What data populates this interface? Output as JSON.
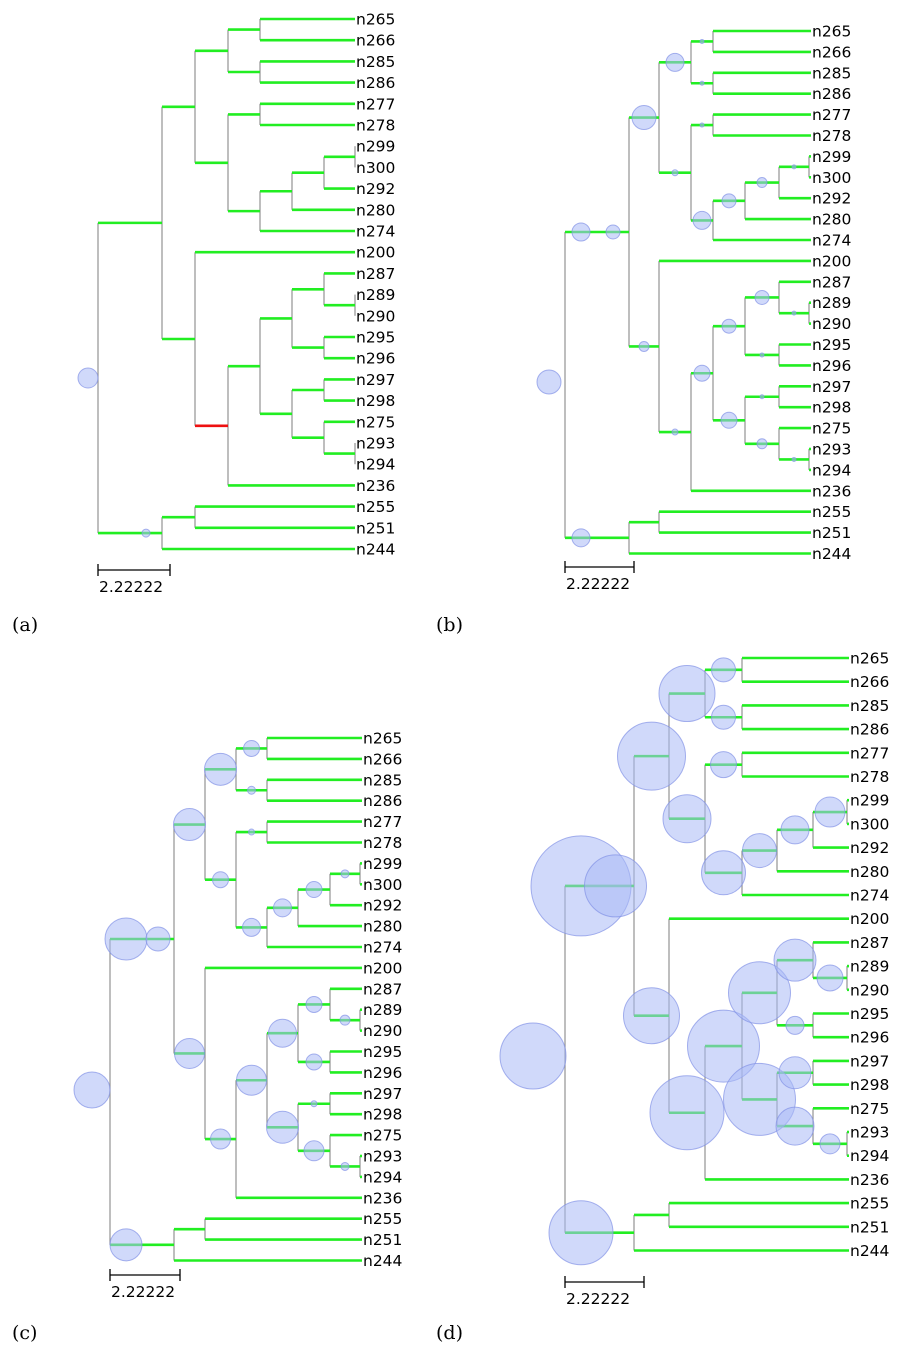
{
  "figure": {
    "scale_label": "2.22222",
    "leaves": [
      "n265",
      "n266",
      "n285",
      "n286",
      "n277",
      "n278",
      "n299",
      "n300",
      "n292",
      "n280",
      "n274",
      "n200",
      "n287",
      "n289",
      "n290",
      "n295",
      "n296",
      "n297",
      "n298",
      "n275",
      "n293",
      "n294",
      "n236",
      "n255",
      "n251",
      "n244"
    ],
    "colors": {
      "edge": "#22ee22",
      "highlight_edge": "#ee1111",
      "stem": "#888888",
      "bubble": "#aab9f5"
    },
    "panels": [
      {
        "caption": "(a)",
        "highlight_edge": "n236-parent"
      },
      {
        "caption": "(b)"
      },
      {
        "caption": "(c)"
      },
      {
        "caption": "(d)"
      }
    ]
  }
}
